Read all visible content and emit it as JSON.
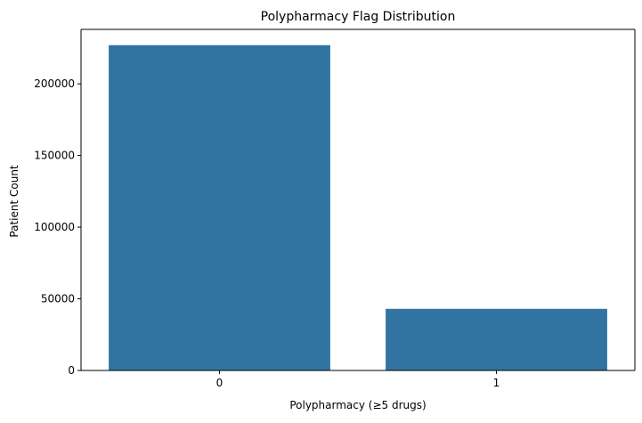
{
  "chart_data": {
    "type": "bar",
    "title": "Polypharmacy Flag Distribution",
    "xlabel": "Polypharmacy (≥5 drugs)",
    "ylabel": "Patient Count",
    "categories": [
      "0",
      "1"
    ],
    "values": [
      227000,
      43000
    ],
    "ylim": [
      0,
      238000
    ],
    "yticks": [
      0,
      50000,
      100000,
      150000,
      200000
    ],
    "bar_color": "#3274a1",
    "grid": false,
    "legend": "none"
  }
}
